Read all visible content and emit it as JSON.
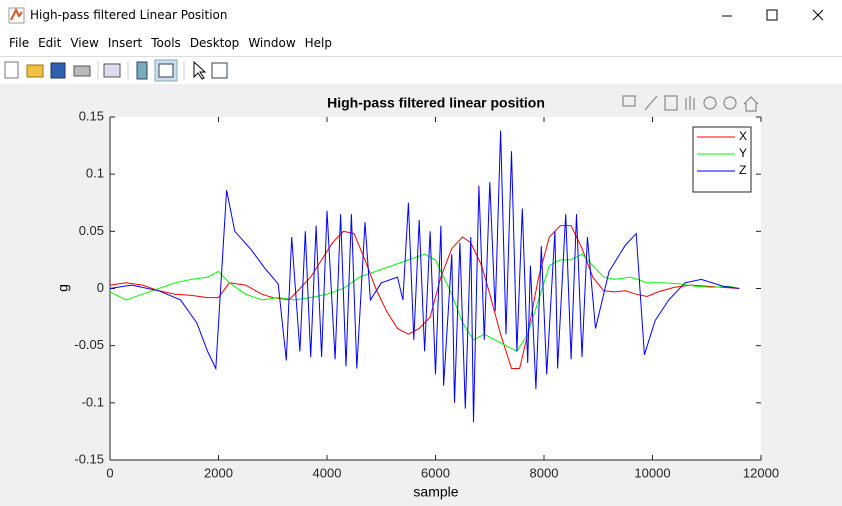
{
  "window": {
    "title": "High-pass filtered Linear Position"
  },
  "menu": [
    "File",
    "Edit",
    "View",
    "Insert",
    "Tools",
    "Desktop",
    "Window",
    "Help"
  ],
  "chart_data": {
    "type": "line",
    "title": "High-pass filtered linear position",
    "xlabel": "sample",
    "ylabel": "g",
    "xlim": [
      0,
      12000
    ],
    "xticks": [
      0,
      2000,
      4000,
      6000,
      8000,
      10000,
      12000
    ],
    "ylim": [
      -0.15,
      0.15
    ],
    "yticks": [
      -0.15,
      -0.1,
      -0.05,
      0,
      0.05,
      0.1,
      0.15
    ],
    "legend": "northeast",
    "series": [
      {
        "name": "X",
        "color": "#ff0000",
        "x": [
          0,
          300,
          600,
          900,
          1200,
          1500,
          1800,
          2000,
          2200,
          2500,
          2800,
          3000,
          3300,
          3500,
          3700,
          3900,
          4100,
          4300,
          4500,
          4700,
          4900,
          5100,
          5300,
          5500,
          5700,
          5900,
          6100,
          6300,
          6500,
          6650,
          6850,
          7000,
          7200,
          7400,
          7550,
          7700,
          7900,
          8100,
          8300,
          8500,
          8700,
          8900,
          9100,
          9300,
          9500,
          9700,
          9900,
          10100,
          10400,
          10700,
          11000,
          11300,
          11600
        ],
        "values": [
          0.003,
          0.005,
          0.003,
          -0.002,
          -0.005,
          -0.006,
          -0.008,
          -0.008,
          0.005,
          0.003,
          -0.005,
          -0.008,
          -0.01,
          0,
          0.01,
          0.025,
          0.04,
          0.05,
          0.048,
          0.025,
          0,
          -0.02,
          -0.035,
          -0.04,
          -0.035,
          -0.025,
          0.01,
          0.035,
          0.045,
          0.04,
          0.02,
          -0.005,
          -0.04,
          -0.07,
          -0.07,
          -0.04,
          0.01,
          0.045,
          0.055,
          0.055,
          0.035,
          0.01,
          -0.002,
          -0.003,
          -0.002,
          -0.005,
          -0.007,
          -0.003,
          0.001,
          0.003,
          0.002,
          0.001,
          0
        ]
      },
      {
        "name": "Y",
        "color": "#00ff00",
        "x": [
          0,
          300,
          600,
          900,
          1200,
          1500,
          1800,
          2000,
          2200,
          2500,
          2800,
          3100,
          3400,
          3700,
          4000,
          4300,
          4600,
          4900,
          5200,
          5500,
          5800,
          6000,
          6150,
          6300,
          6500,
          6700,
          6900,
          7100,
          7300,
          7500,
          7700,
          7900,
          8100,
          8300,
          8500,
          8700,
          8900,
          9100,
          9300,
          9600,
          9900,
          10200,
          10500,
          10800,
          11100,
          11400,
          11600
        ],
        "values": [
          -0.003,
          -0.01,
          -0.005,
          0,
          0.005,
          0.008,
          0.01,
          0.015,
          0.005,
          -0.005,
          -0.01,
          -0.008,
          -0.01,
          -0.008,
          -0.005,
          0,
          0.01,
          0.015,
          0.02,
          0.025,
          0.03,
          0.025,
          0.01,
          -0.005,
          -0.03,
          -0.045,
          -0.04,
          -0.045,
          -0.05,
          -0.055,
          -0.04,
          -0.01,
          0.02,
          0.025,
          0.025,
          0.03,
          0.02,
          0.01,
          0.008,
          0.01,
          0.005,
          0.005,
          0.004,
          0.002,
          0.001,
          0.002,
          0
        ]
      },
      {
        "name": "Z",
        "color": "#0000ff",
        "x": [
          0,
          400,
          900,
          1300,
          1600,
          1800,
          1950,
          2150,
          2300,
          2600,
          2850,
          3100,
          3250,
          3350,
          3500,
          3600,
          3700,
          3800,
          3900,
          4000,
          4150,
          4250,
          4350,
          4450,
          4550,
          4700,
          4800,
          5000,
          5300,
          5400,
          5500,
          5600,
          5700,
          5800,
          5900,
          6000,
          6100,
          6150,
          6300,
          6350,
          6450,
          6550,
          6650,
          6700,
          6800,
          6900,
          7000,
          7100,
          7200,
          7300,
          7400,
          7500,
          7600,
          7700,
          7750,
          7850,
          7950,
          8050,
          8200,
          8250,
          8400,
          8500,
          8600,
          8700,
          8800,
          8950,
          9200,
          9500,
          9700,
          9850,
          10050,
          10300,
          10600,
          10900,
          11300,
          11600
        ],
        "values": [
          0,
          0.003,
          -0.002,
          -0.01,
          -0.03,
          -0.055,
          -0.07,
          0.086,
          0.05,
          0.034,
          0.018,
          0.004,
          -0.063,
          0.045,
          -0.055,
          0.05,
          -0.06,
          0.055,
          -0.06,
          0.068,
          -0.062,
          0.065,
          -0.068,
          0.065,
          -0.07,
          0.058,
          -0.01,
          0.005,
          0.01,
          -0.01,
          0.075,
          -0.045,
          0.06,
          -0.055,
          0.05,
          -0.075,
          0.055,
          -0.085,
          0.03,
          -0.1,
          0.04,
          -0.105,
          0.045,
          -0.117,
          0.09,
          -0.045,
          0.093,
          -0.02,
          0.138,
          -0.04,
          0.12,
          -0.055,
          0.07,
          -0.065,
          0.02,
          -0.088,
          0.037,
          -0.075,
          0.05,
          -0.07,
          0.065,
          -0.062,
          0.065,
          -0.06,
          0.045,
          -0.035,
          0.015,
          0.038,
          0.048,
          -0.058,
          -0.028,
          -0.01,
          0.005,
          0.008,
          0.002,
          0
        ]
      }
    ]
  }
}
